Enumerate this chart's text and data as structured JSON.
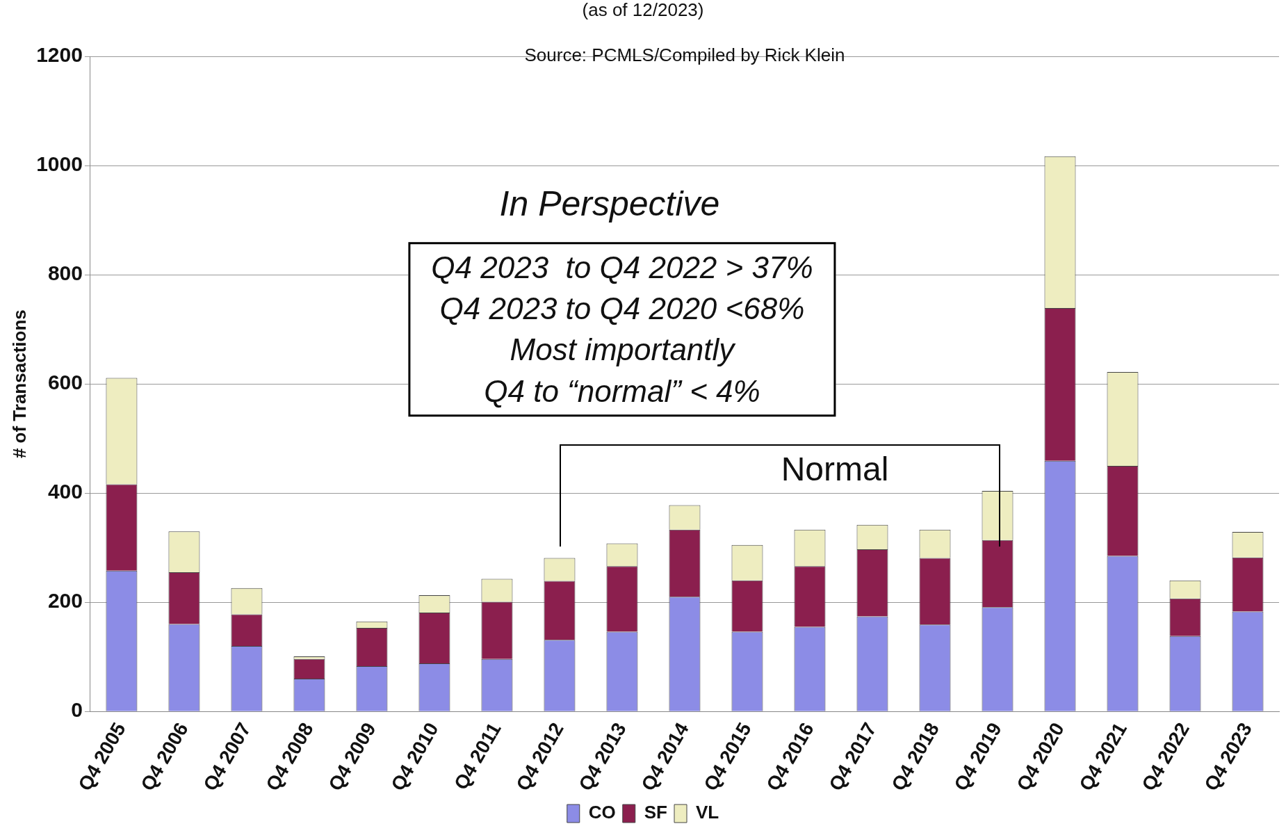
{
  "chart_data": {
    "type": "bar",
    "subtitle": "(as of 12/2023)",
    "ylabel": "# of Transactions",
    "categories": [
      "Q4 2005",
      "Q4 2006",
      "Q4 2007",
      "Q4 2008",
      "Q4 2009",
      "Q4 2010",
      "Q4 2011",
      "Q4 2012",
      "Q4 2013",
      "Q4 2014",
      "Q4 2015",
      "Q4 2016",
      "Q4 2017",
      "Q4 2018",
      "Q4 2019",
      "Q4 2020",
      "Q4 2021",
      "Q4 2022",
      "Q4 2023"
    ],
    "series": [
      {
        "name": "CO",
        "color": "#8c8ce6",
        "values": [
          258,
          160,
          120,
          60,
          83,
          88,
          96,
          131,
          146,
          210,
          146,
          155,
          174,
          159,
          191,
          459,
          285,
          138,
          183
        ]
      },
      {
        "name": "SF",
        "color": "#8b1f4e",
        "values": [
          158,
          95,
          58,
          36,
          70,
          93,
          105,
          108,
          120,
          123,
          94,
          111,
          123,
          122,
          123,
          280,
          165,
          69,
          99
        ]
      },
      {
        "name": "VL",
        "color": "#eeedc0",
        "values": [
          195,
          75,
          48,
          5,
          12,
          32,
          42,
          42,
          42,
          45,
          65,
          67,
          45,
          52,
          90,
          278,
          172,
          33,
          47
        ]
      }
    ],
    "stacked": true,
    "ylim": [
      0,
      1200
    ],
    "yticks": [
      0,
      200,
      400,
      600,
      800,
      1000,
      1200
    ],
    "grid": "y",
    "legend": "bottom",
    "annotations": [
      "Source: PCMLS/Compiled by Rick Klein",
      "In Perspective",
      "Q4 2023  to Q4 2022 > 37%\nQ4 2023 to Q4 2020 <68%\nMost importantly\nQ4 to “normal” < 4%",
      "Normal"
    ]
  }
}
